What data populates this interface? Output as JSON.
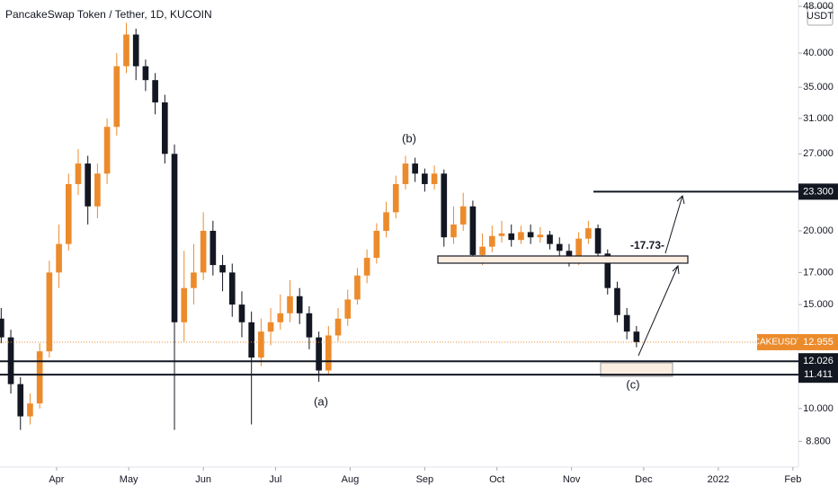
{
  "chart_data": {
    "type": "candlestick",
    "title": "PancakeSwap Token / Tether, 1D, KUCOIN",
    "currency": "USDT",
    "log_scale": true,
    "x": [
      8,
      12,
      16,
      20,
      24,
      28,
      32,
      36,
      40,
      44,
      48,
      52,
      56,
      60,
      64,
      68,
      72,
      76,
      80,
      84,
      88,
      92,
      96,
      100,
      104,
      108,
      112,
      116,
      120,
      124,
      128,
      132,
      136,
      140,
      144,
      148,
      152,
      156,
      160,
      164,
      168,
      172,
      176,
      180,
      184,
      188,
      192,
      196,
      200,
      204,
      208,
      212,
      216,
      220,
      224,
      228,
      232,
      236,
      240,
      244,
      248,
      252,
      256,
      260,
      264,
      268,
      272
    ],
    "xlim": [
      7.5,
      339.3
    ],
    "xticks": [
      {
        "value": 31,
        "label": "Apr"
      },
      {
        "value": 61,
        "label": "May"
      },
      {
        "value": 92,
        "label": "Jun"
      },
      {
        "value": 122,
        "label": "Jul"
      },
      {
        "value": 153,
        "label": "Aug"
      },
      {
        "value": 184,
        "label": "Sep"
      },
      {
        "value": 214,
        "label": "Oct"
      },
      {
        "value": 245,
        "label": "Nov"
      },
      {
        "value": 275,
        "label": "Dec"
      },
      {
        "value": 306,
        "label": "2022"
      },
      {
        "value": 337,
        "label": "Feb"
      }
    ],
    "ylim": [
      7.96,
      49.2
    ],
    "yticks": [
      {
        "value": 8.8,
        "label": "8.800"
      },
      {
        "value": 10,
        "label": "10.000"
      },
      {
        "value": 15,
        "label": "15.000"
      },
      {
        "value": 17,
        "label": "17.000"
      },
      {
        "value": 20,
        "label": "20.000"
      },
      {
        "value": 27,
        "label": "27.000"
      },
      {
        "value": 31,
        "label": "31.000"
      },
      {
        "value": 35,
        "label": "35.000"
      },
      {
        "value": 40,
        "label": "40.000"
      },
      {
        "value": 48,
        "label": "48.000"
      }
    ],
    "up_color": "#ec8b2c",
    "down_color": "#131722",
    "series": [
      {
        "name": "CAKEUSDT",
        "open": [
          14.2,
          13.2,
          11,
          9.7,
          10.2,
          12.5,
          17,
          19,
          24,
          26,
          22,
          25,
          30,
          38,
          43,
          38,
          36,
          33,
          27,
          14,
          16,
          17,
          20,
          17.5,
          17,
          15,
          14,
          12.2,
          13.5,
          14,
          14.5,
          15.5,
          14.5,
          13.2,
          11.6,
          13.3,
          14.2,
          15.3,
          16.8,
          18,
          20,
          21.5,
          24,
          26,
          25,
          24,
          25,
          19.5,
          20.5,
          22,
          18.2,
          18.8,
          19.6,
          19.8,
          19.3,
          19.9,
          19.5,
          19.7,
          19,
          18.5,
          17.8,
          19.4,
          20.2,
          18.3,
          16,
          14.4,
          13.5
        ],
        "high": [
          14.8,
          13.6,
          11.3,
          10.6,
          12.9,
          17.8,
          20.5,
          25,
          27.5,
          26.8,
          26,
          31,
          40,
          45,
          44,
          39,
          37,
          34,
          28,
          18.5,
          19,
          21.5,
          20.8,
          18.2,
          17.6,
          15.8,
          14.6,
          14.2,
          14.8,
          15.6,
          16.5,
          16,
          14.9,
          13.5,
          13.8,
          14.8,
          15.9,
          17.3,
          18.6,
          20.6,
          22.4,
          24.8,
          26.8,
          26.6,
          25.5,
          25.8,
          25.4,
          22,
          23.2,
          22.5,
          19.8,
          20.4,
          20.8,
          20.5,
          20.4,
          20.5,
          20.3,
          20,
          19.5,
          19,
          19.9,
          20.8,
          20.5,
          18.6,
          16.4,
          14.8,
          13.8
        ],
        "low": [
          12.9,
          10.6,
          9.2,
          9.4,
          10,
          12.2,
          16,
          18.5,
          23,
          20.5,
          21,
          24,
          29,
          37,
          36,
          34.5,
          31.5,
          26,
          9.2,
          13,
          15,
          16.5,
          16.8,
          15.8,
          14.3,
          13.2,
          9.4,
          11.8,
          12.8,
          13.6,
          14,
          13.9,
          12.6,
          11.1,
          11.4,
          13,
          13.8,
          15,
          16.3,
          17.6,
          19.5,
          21,
          23.5,
          24.2,
          23.3,
          23.5,
          18.8,
          19,
          20,
          17.6,
          17.5,
          18.4,
          19.1,
          18.8,
          19,
          19,
          19.1,
          18.6,
          17.9,
          17.4,
          17.5,
          19,
          17.9,
          15.6,
          14,
          13.1,
          12.7
        ],
        "close": [
          13.2,
          11,
          9.7,
          10.2,
          12.5,
          17,
          19,
          24,
          26,
          22,
          25,
          30,
          38,
          43,
          38,
          36,
          33,
          27,
          14,
          16,
          17,
          20,
          17.5,
          17,
          15,
          14,
          12.2,
          13.5,
          14,
          14.5,
          15.5,
          14.5,
          13.2,
          11.6,
          13.3,
          14.2,
          15.3,
          16.8,
          18,
          20,
          21.5,
          24,
          26,
          25,
          24,
          25,
          19.5,
          20.5,
          22,
          18.2,
          18.8,
          19.6,
          19.8,
          19.3,
          19.9,
          19.5,
          19.7,
          19,
          18.5,
          17.8,
          19.4,
          20.2,
          18.3,
          16,
          14.4,
          13.5,
          12.955
        ]
      }
    ],
    "last_price": 12.955,
    "hlines": [
      {
        "value": 23.3,
        "label": "23.300"
      },
      {
        "value": 12.026,
        "label": "12.026"
      },
      {
        "value": 11.411,
        "label": "11.411"
      }
    ],
    "annotations": [
      "(a)",
      "(b)",
      "(c)",
      "-17.73-"
    ]
  }
}
